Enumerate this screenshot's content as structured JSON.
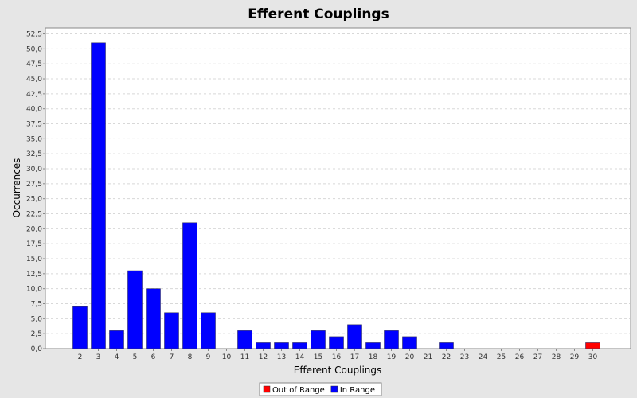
{
  "chart_data": {
    "type": "bar",
    "title": "Efferent Couplings",
    "xlabel": "Efferent Couplings",
    "ylabel": "Occurrences",
    "categories": [
      "2",
      "3",
      "4",
      "5",
      "6",
      "7",
      "8",
      "9",
      "10",
      "11",
      "12",
      "13",
      "14",
      "15",
      "16",
      "17",
      "18",
      "19",
      "20",
      "21",
      "22",
      "23",
      "24",
      "25",
      "26",
      "27",
      "28",
      "29",
      "30"
    ],
    "series": [
      {
        "name": "Out of Range",
        "color": "#ff0000",
        "values": [
          0,
          0,
          0,
          0,
          0,
          0,
          0,
          0,
          0,
          0,
          0,
          0,
          0,
          0,
          0,
          0,
          0,
          0,
          0,
          0,
          0,
          0,
          0,
          0,
          0,
          0,
          0,
          0,
          1
        ]
      },
      {
        "name": "In Range",
        "color": "#0000ff",
        "values": [
          7,
          51,
          3,
          13,
          10,
          6,
          21,
          6,
          0,
          3,
          1,
          1,
          1,
          3,
          2,
          4,
          1,
          3,
          2,
          0,
          1,
          0,
          0,
          0,
          0,
          0,
          0,
          0,
          0
        ]
      }
    ],
    "ylim": [
      0,
      53.5
    ],
    "yticks": [
      "0,0",
      "2,5",
      "5,0",
      "7,5",
      "10,0",
      "12,5",
      "15,0",
      "17,5",
      "20,0",
      "22,5",
      "25,0",
      "27,5",
      "30,0",
      "32,5",
      "35,0",
      "37,5",
      "40,0",
      "42,5",
      "45,0",
      "47,5",
      "50,0",
      "52,5"
    ],
    "grid": true,
    "legend_position": "bottom"
  }
}
